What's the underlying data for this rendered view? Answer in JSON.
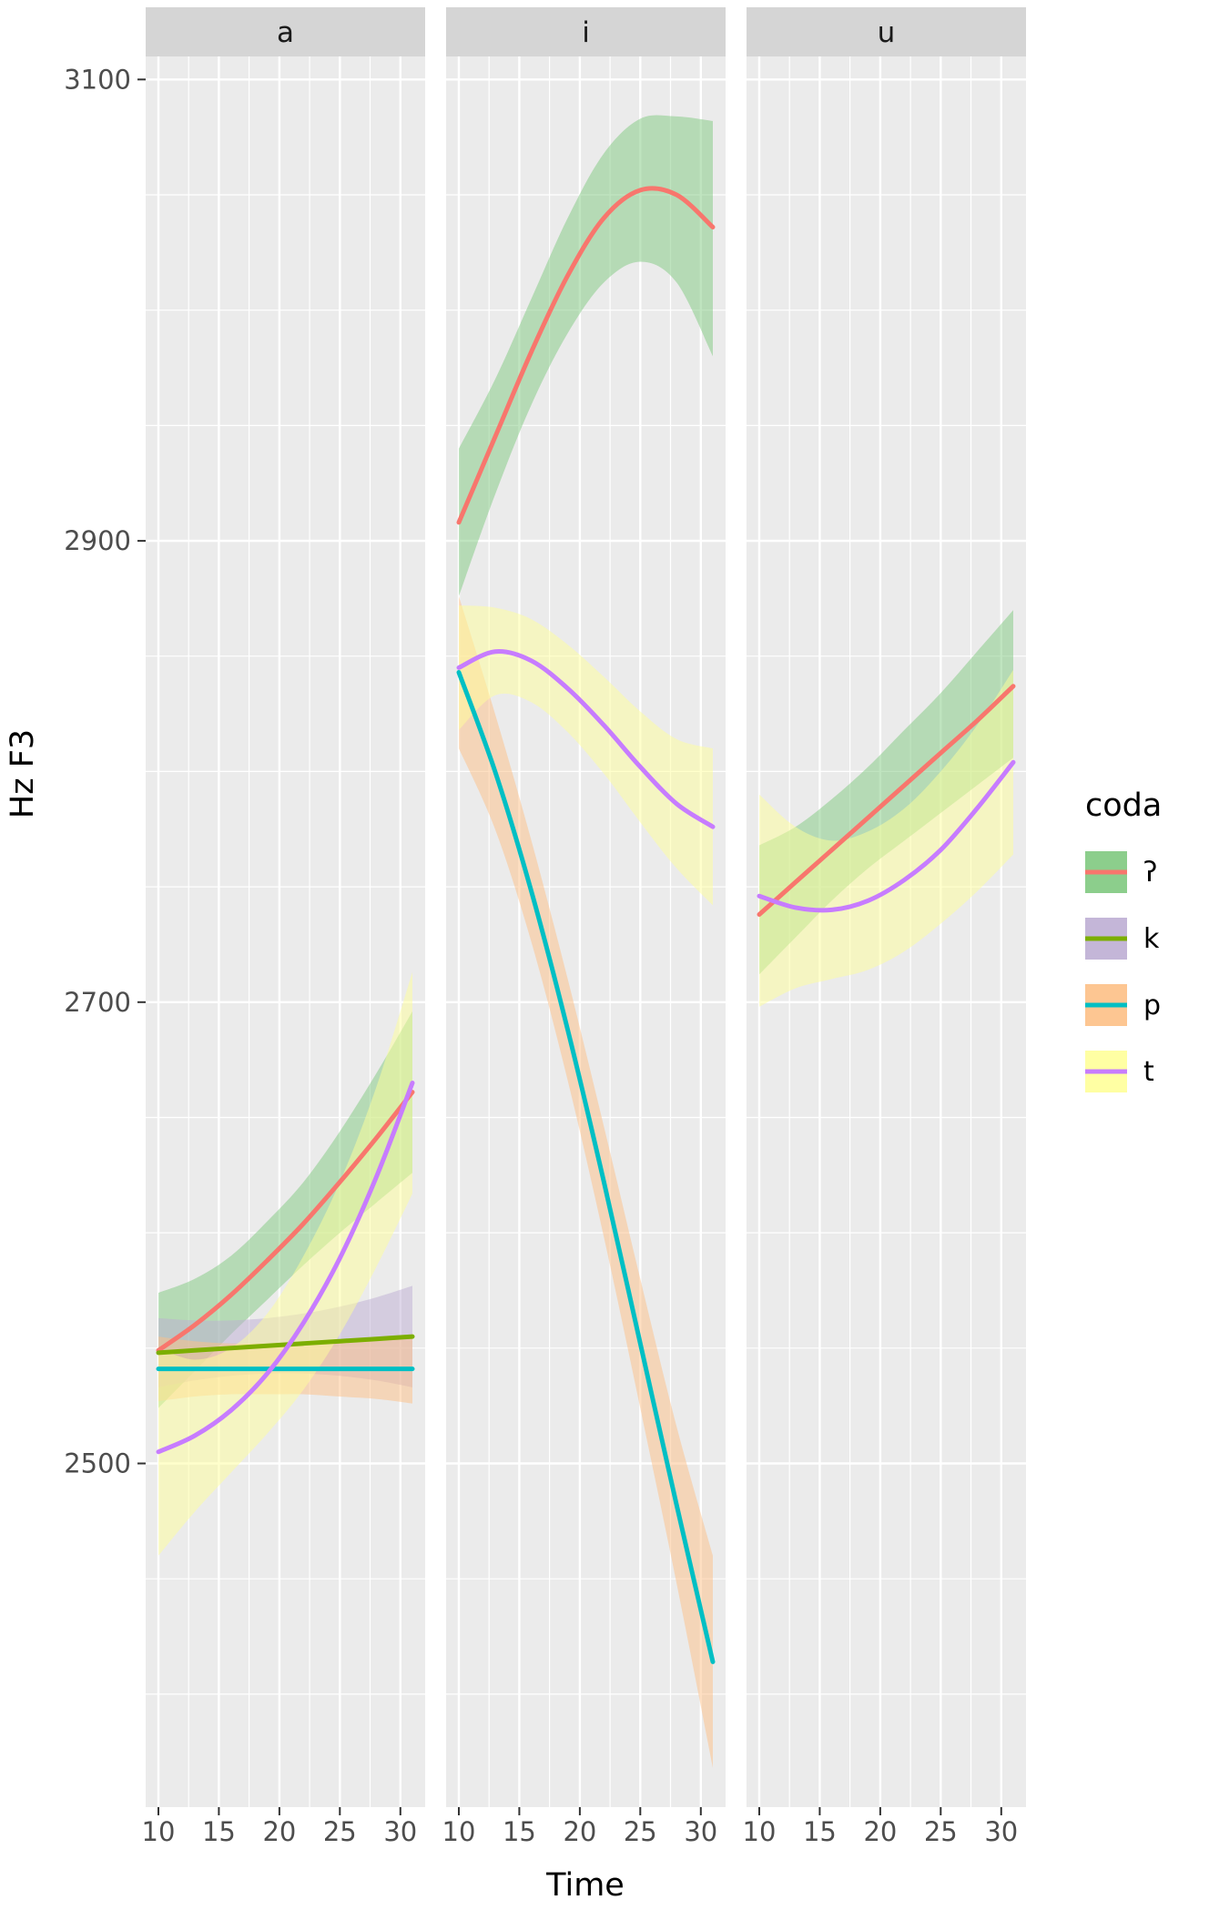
{
  "chart_data": {
    "type": "line",
    "title": "",
    "xlabel": "Time",
    "ylabel": "Hz F3",
    "facets": [
      "a",
      "i",
      "u"
    ],
    "x_ticks": [
      10,
      15,
      20,
      25,
      30
    ],
    "x_minor_ticks": [
      12.5,
      17.5,
      22.5,
      27.5
    ],
    "y_ticks": [
      2500,
      2700,
      2900,
      3100
    ],
    "y_minor_step": 50,
    "xlim": [
      8.95,
      32.05
    ],
    "ylim": [
      2351,
      3110
    ],
    "legend": {
      "title": "coda",
      "entries": [
        {
          "label": "ʔ",
          "line_color": "#F8766D",
          "fill_color": "#7FC97F"
        },
        {
          "label": "k",
          "line_color": "#7CAE00",
          "fill_color": "#BEAED4"
        },
        {
          "label": "p",
          "line_color": "#00BFC4",
          "fill_color": "#FDC086"
        },
        {
          "label": "t",
          "line_color": "#C77CFF",
          "fill_color": "#FFFF99"
        }
      ]
    },
    "x": [
      10,
      13,
      16,
      19,
      22,
      25,
      28,
      31
    ],
    "series": [
      {
        "facet": "a",
        "coda": "ʔ",
        "y": [
          2549,
          2560,
          2573,
          2588,
          2604,
          2622,
          2641,
          2661
        ],
        "lo": [
          2524,
          2540,
          2556,
          2571,
          2586,
          2600,
          2613,
          2626
        ],
        "hi": [
          2574,
          2580,
          2590,
          2605,
          2622,
          2644,
          2669,
          2696
        ]
      },
      {
        "facet": "a",
        "coda": "k",
        "y": [
          2548,
          2549,
          2550,
          2551,
          2552,
          2553,
          2554,
          2555
        ],
        "lo": [
          2533,
          2536,
          2538,
          2539,
          2539,
          2538,
          2536,
          2533
        ],
        "hi": [
          2563,
          2562,
          2562,
          2563,
          2565,
          2568,
          2572,
          2577
        ]
      },
      {
        "facet": "a",
        "coda": "p",
        "y": [
          2541,
          2541,
          2541,
          2541,
          2541,
          2541,
          2541,
          2541
        ],
        "lo": [
          2527,
          2529,
          2530,
          2530,
          2530,
          2529,
          2528,
          2526
        ],
        "hi": [
          2555,
          2553,
          2552,
          2552,
          2552,
          2553,
          2554,
          2556
        ]
      },
      {
        "facet": "a",
        "coda": "t",
        "y": [
          2505,
          2512,
          2523,
          2539,
          2561,
          2589,
          2624,
          2665
        ],
        "lo": [
          2460,
          2479,
          2496,
          2513,
          2532,
          2556,
          2585,
          2617
        ],
        "hi": [
          2550,
          2545,
          2550,
          2565,
          2590,
          2622,
          2663,
          2713
        ]
      },
      {
        "facet": "i",
        "coda": "ʔ",
        "y": [
          2908,
          2945,
          2982,
          3015,
          3040,
          3052,
          3050,
          3036
        ],
        "lo": [
          2876,
          2920,
          2959,
          2990,
          3012,
          3021,
          3012,
          2980
        ],
        "hi": [
          2940,
          2970,
          3005,
          3040,
          3068,
          3083,
          3084,
          3082
        ]
      },
      {
        "facet": "i",
        "coda": "p",
        "y": [
          2843,
          2800,
          2748,
          2688,
          2622,
          2552,
          2482,
          2414
        ],
        "lo": [
          2810,
          2775,
          2726,
          2666,
          2598,
          2524,
          2448,
          2368
        ],
        "hi": [
          2876,
          2825,
          2770,
          2710,
          2646,
          2580,
          2516,
          2460
        ]
      },
      {
        "facet": "i",
        "coda": "t",
        "y": [
          2845,
          2852,
          2848,
          2836,
          2820,
          2802,
          2786,
          2776
        ],
        "lo": [
          2818,
          2833,
          2830,
          2817,
          2799,
          2778,
          2758,
          2742
        ],
        "hi": [
          2872,
          2871,
          2866,
          2855,
          2841,
          2826,
          2814,
          2810
        ]
      },
      {
        "facet": "u",
        "coda": "ʔ",
        "y": [
          2738,
          2752,
          2766,
          2780,
          2794,
          2808,
          2822,
          2837
        ],
        "lo": [
          2712,
          2728,
          2744,
          2758,
          2770,
          2782,
          2794,
          2806
        ],
        "hi": [
          2768,
          2776,
          2788,
          2802,
          2818,
          2834,
          2852,
          2870
        ]
      },
      {
        "facet": "u",
        "coda": "t",
        "y": [
          2746,
          2741,
          2740,
          2744,
          2753,
          2766,
          2784,
          2804
        ],
        "lo": [
          2698,
          2706,
          2710,
          2714,
          2722,
          2734,
          2748,
          2764
        ],
        "hi": [
          2790,
          2776,
          2770,
          2774,
          2784,
          2800,
          2820,
          2844
        ]
      }
    ]
  },
  "style": {
    "background": "#FFFFFF",
    "panel_bg": "#EBEBEB",
    "strip_bg": "#D5D5D5",
    "grid_color": "#FFFFFF",
    "tick_label_color": "#4D4D4D",
    "tick_mark_color": "#333333",
    "text_color": "#000000",
    "ribbon_opacity": 0.5,
    "legend_key_opacity": 0.9,
    "line_width": 5
  }
}
